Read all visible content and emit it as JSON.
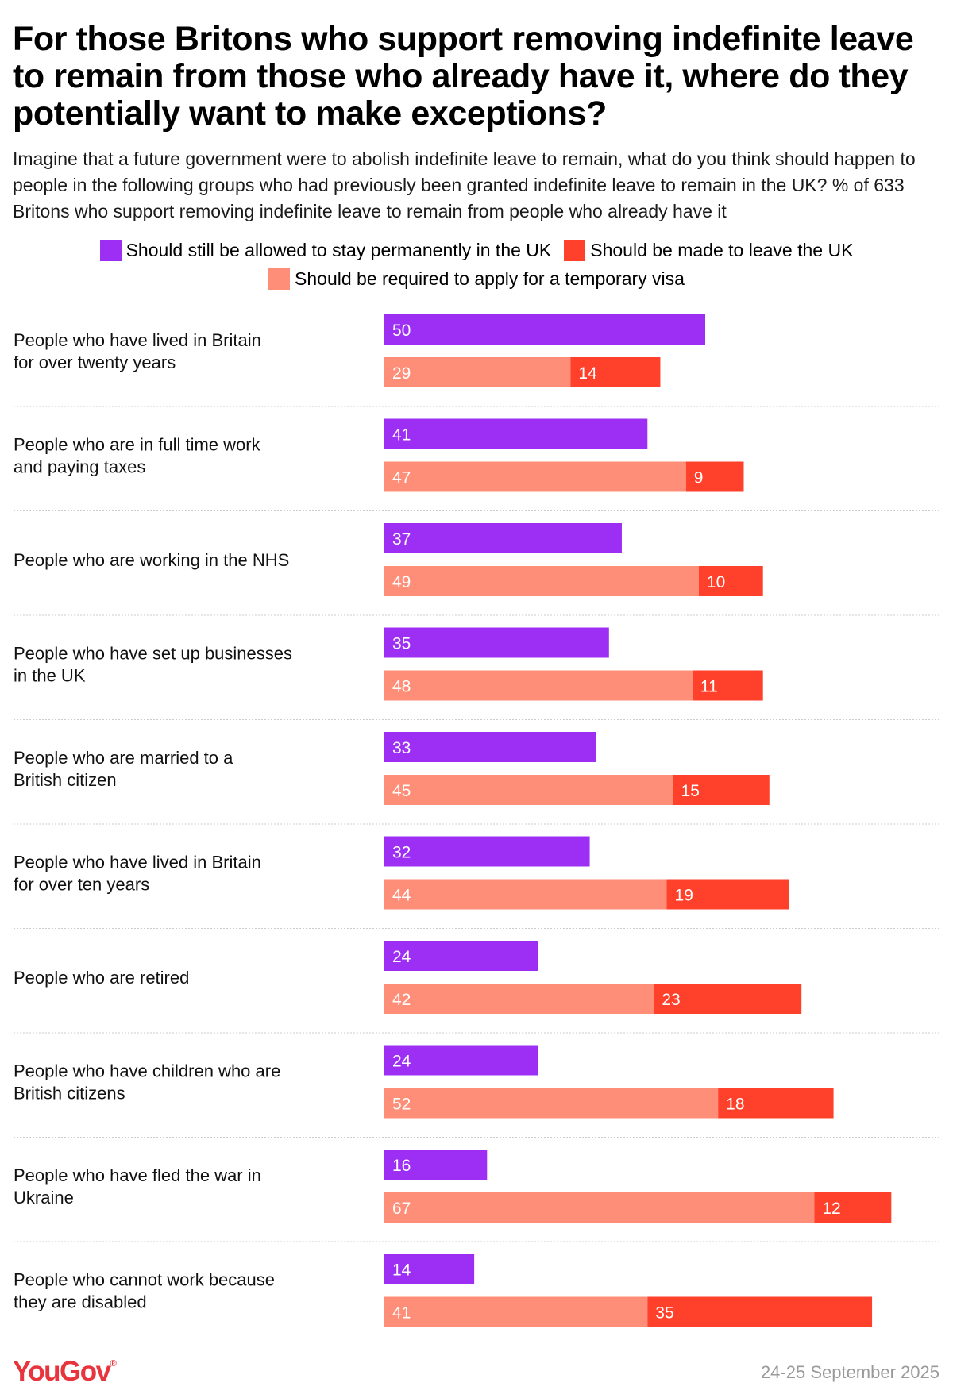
{
  "title": "For those Britons who support removing indefinite leave to remain from those who already have it, where do they potentially want to make exceptions?",
  "subtitle": "Imagine that a future government were to abolish indefinite leave to remain, what do you think should happen to people in the following groups who had previously been granted indefinite leave to remain in the UK? % of 633 Britons who support removing indefinite leave to remain from people who already have it",
  "legend": [
    {
      "label": "Should still be allowed to stay permanently in the UK",
      "color": "#9d2ff5"
    },
    {
      "label": "Should be made to leave the UK",
      "color": "#ff412c"
    },
    {
      "label": "Should be required to apply for a temporary visa",
      "color": "#ff8e78"
    }
  ],
  "colors": {
    "stay": "#9d2ff5",
    "visa": "#ff8e78",
    "leave": "#ff412c",
    "separator": "#cccccc"
  },
  "chart_data": {
    "type": "bar",
    "orientation": "horizontal",
    "categories": [
      "People who have lived in Britain for over twenty years",
      "People who are in full time work and paying taxes",
      "People who are working in the NHS",
      "People who have set up businesses in the UK",
      "People who are married to a British citizen",
      "People who have lived in Britain for over ten years",
      "People who are retired",
      "People who have children who are British citizens",
      "People who have fled the war in Ukraine",
      "People who cannot work because they are disabled"
    ],
    "series": [
      {
        "name": "Should still be allowed to stay permanently in the UK",
        "values": [
          50,
          41,
          37,
          35,
          33,
          32,
          24,
          24,
          16,
          14
        ]
      },
      {
        "name": "Should be required to apply for a temporary visa",
        "values": [
          29,
          47,
          49,
          48,
          45,
          44,
          42,
          52,
          67,
          41
        ]
      },
      {
        "name": "Should be made to leave the UK",
        "values": [
          14,
          9,
          10,
          11,
          15,
          19,
          23,
          18,
          12,
          35
        ]
      }
    ],
    "stacked": "visa and leave stacked on second bar",
    "unit": "%",
    "xlim": [
      0,
      100
    ]
  },
  "footer": {
    "brand": "YouGov",
    "brand_mark": "®",
    "date": "24-25 September 2025"
  }
}
